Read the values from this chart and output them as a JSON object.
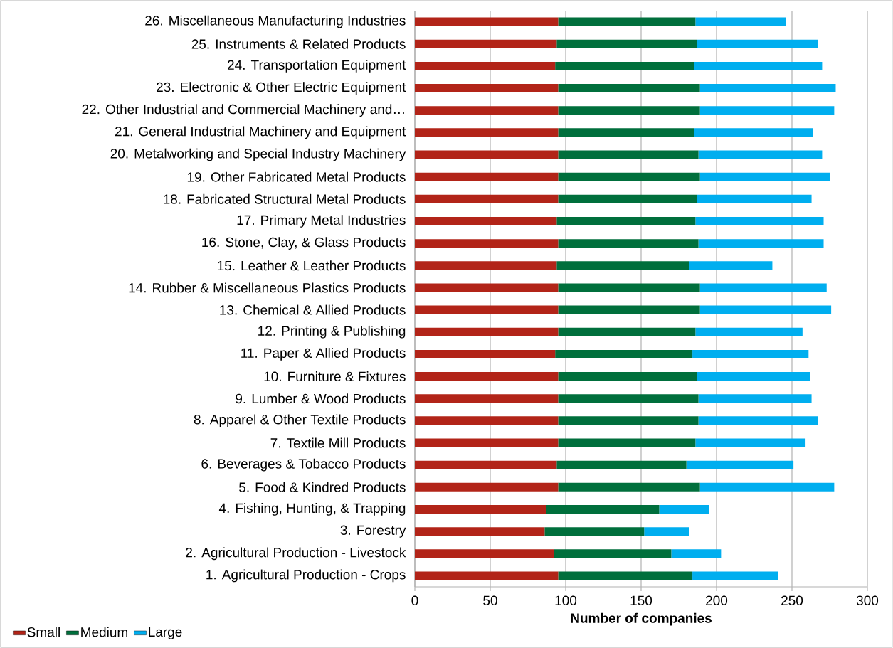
{
  "chart_data": {
    "type": "bar",
    "orientation": "horizontal",
    "stacked": true,
    "xlabel": "Number of companies",
    "categories": [
      "26. Miscellaneous Manufacturing Industries",
      "25. Instruments & Related Products",
      "24. Transportation Equipment",
      "23. Electronic & Other Electric Equipment",
      "22. Other Industrial and Commercial Machinery and…",
      "21. General Industrial Machinery and Equipment",
      "20. Metalworking and Special Industry Machinery",
      "19. Other Fabricated Metal Products",
      "18. Fabricated Structural Metal Products",
      "17. Primary Metal Industries",
      "16. Stone, Clay, & Glass Products",
      "15. Leather & Leather Products",
      "14. Rubber & Miscellaneous Plastics Products",
      "13. Chemical & Allied Products",
      "12. Printing & Publishing",
      "11. Paper & Allied Products",
      "10. Furniture & Fixtures",
      "9. Lumber & Wood Products",
      "8. Apparel & Other Textile Products",
      "7. Textile Mill Products",
      "6. Beverages & Tobacco Products",
      "5. Food & Kindred Products",
      "4. Fishing, Hunting, & Trapping",
      "3. Forestry",
      "2. Agricultural Production - Livestock",
      "1. Agricultural Production - Crops"
    ],
    "series": [
      {
        "name": "Small",
        "color": "#b22418",
        "values": [
          95,
          94,
          93,
          95,
          95,
          95,
          95,
          95,
          95,
          94,
          95,
          94,
          95,
          95,
          95,
          93,
          95,
          95,
          95,
          95,
          94,
          95,
          87,
          86,
          92,
          95
        ]
      },
      {
        "name": "Medium",
        "color": "#006f3c",
        "values": [
          91,
          93,
          92,
          94,
          94,
          90,
          93,
          94,
          92,
          92,
          93,
          88,
          94,
          94,
          91,
          91,
          92,
          93,
          93,
          91,
          86,
          94,
          75,
          66,
          78,
          89
        ]
      },
      {
        "name": "Large",
        "color": "#00aeef",
        "values": [
          60,
          80,
          85,
          90,
          89,
          79,
          82,
          86,
          76,
          85,
          83,
          55,
          84,
          87,
          71,
          77,
          75,
          75,
          79,
          73,
          71,
          89,
          33,
          30,
          33,
          57
        ]
      }
    ],
    "xlim": [
      0,
      300
    ],
    "xticks": [
      0,
      50,
      100,
      150,
      200,
      250,
      300
    ],
    "grid": "x",
    "legend": "bottom left"
  }
}
